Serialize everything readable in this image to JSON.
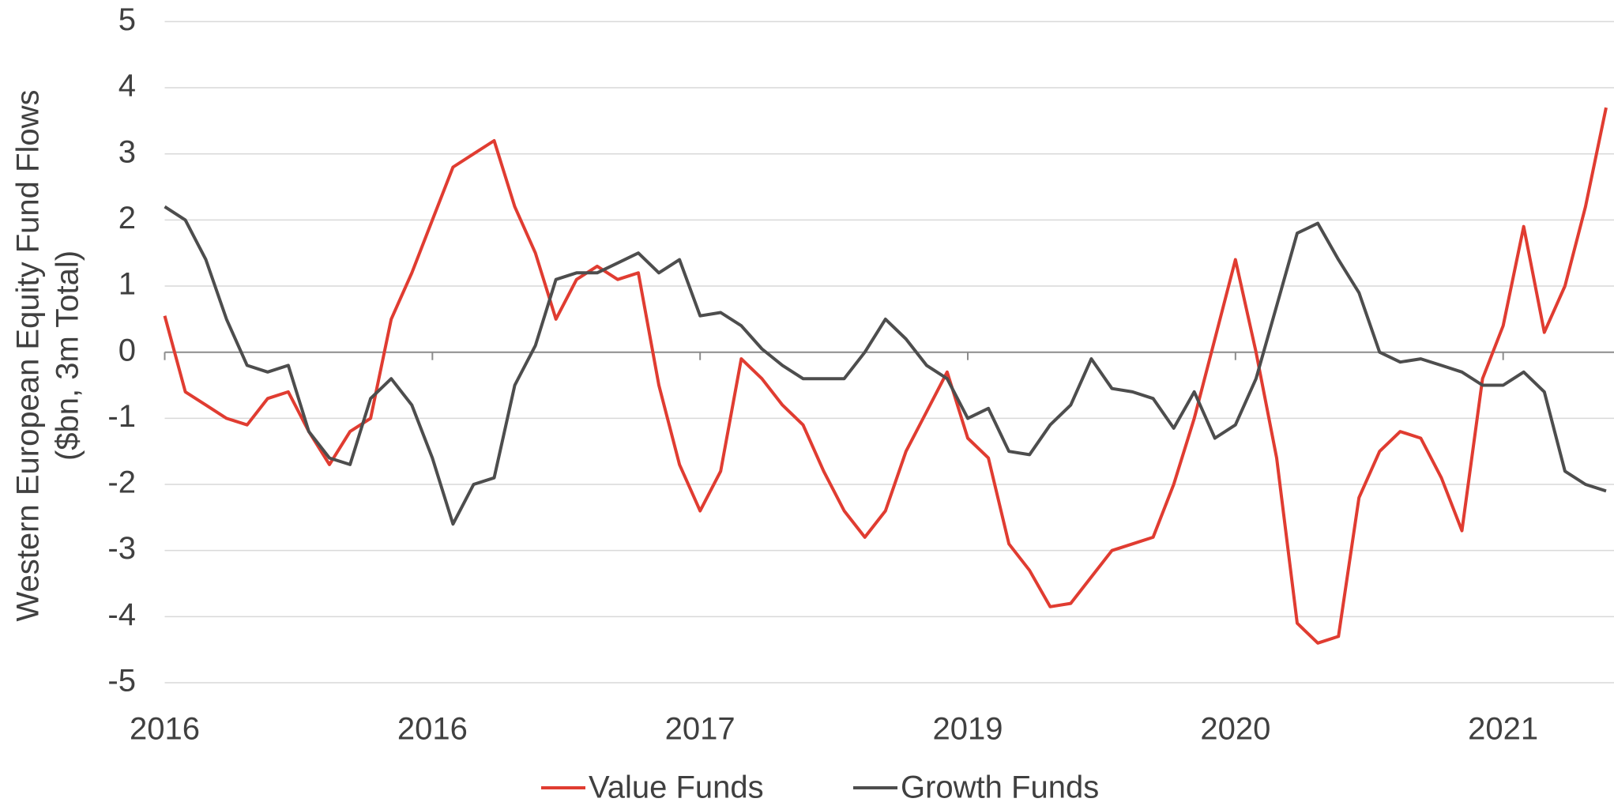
{
  "chart_data": {
    "type": "line",
    "y_label": [
      "Western European Equity Fund Flows",
      "($bn, 3m Total)"
    ],
    "categories": [
      "2016",
      null,
      null,
      null,
      null,
      null,
      null,
      null,
      null,
      null,
      null,
      null,
      null,
      "2016",
      null,
      null,
      null,
      null,
      null,
      null,
      null,
      null,
      null,
      null,
      null,
      null,
      "2017",
      null,
      null,
      null,
      null,
      null,
      null,
      null,
      null,
      null,
      null,
      null,
      null,
      "2019",
      null,
      null,
      null,
      null,
      null,
      null,
      null,
      null,
      null,
      null,
      null,
      null,
      "2020",
      null,
      null,
      null,
      null,
      null,
      null,
      null,
      null,
      null,
      null,
      null,
      null,
      "2021",
      null,
      null,
      null,
      null,
      null
    ],
    "series": [
      {
        "name": "Value Funds",
        "color": "#e03c31",
        "values": [
          0.55,
          -0.6,
          -0.8,
          -1.0,
          -1.1,
          -0.7,
          -0.6,
          -1.2,
          -1.7,
          -1.2,
          -1.0,
          0.5,
          1.2,
          2.0,
          2.8,
          3.0,
          3.2,
          2.2,
          1.5,
          0.5,
          1.1,
          1.3,
          1.1,
          1.2,
          -0.5,
          -1.7,
          -2.4,
          -1.8,
          -0.1,
          -0.4,
          -0.8,
          -1.1,
          -1.8,
          -2.4,
          -2.8,
          -2.4,
          -1.5,
          -0.9,
          -0.3,
          -1.3,
          -1.6,
          -2.9,
          -3.3,
          -3.85,
          -3.8,
          -3.4,
          -3.0,
          -2.9,
          -2.8,
          -2.0,
          -1.0,
          0.2,
          1.4,
          0.0,
          -1.6,
          -4.1,
          -4.4,
          -4.3,
          -2.2,
          -1.5,
          -1.2,
          -1.3,
          -1.9,
          -2.7,
          -0.4,
          0.4,
          1.9,
          0.3,
          1.0,
          2.2,
          3.7
        ]
      },
      {
        "name": "Growth Funds",
        "color": "#4d4d4d",
        "values": [
          2.2,
          2.0,
          1.4,
          0.5,
          -0.2,
          -0.3,
          -0.2,
          -1.2,
          -1.6,
          -1.7,
          -0.7,
          -0.4,
          -0.8,
          -1.6,
          -2.6,
          -2.0,
          -1.9,
          -0.5,
          0.1,
          1.1,
          1.2,
          1.2,
          1.35,
          1.5,
          1.2,
          1.4,
          0.55,
          0.6,
          0.4,
          0.05,
          -0.2,
          -0.4,
          -0.4,
          -0.4,
          0.0,
          0.5,
          0.2,
          -0.2,
          -0.4,
          -1.0,
          -0.85,
          -1.5,
          -1.55,
          -1.1,
          -0.8,
          -0.1,
          -0.55,
          -0.6,
          -0.7,
          -1.15,
          -0.6,
          -1.3,
          -1.1,
          -0.4,
          0.7,
          1.8,
          1.95,
          1.4,
          0.9,
          0.0,
          -0.15,
          -0.1,
          -0.2,
          -0.3,
          -0.5,
          -0.5,
          -0.3,
          -0.6,
          -1.8,
          -2.0,
          -2.1
        ]
      }
    ],
    "ylim": [
      -5,
      5
    ],
    "yticks": [
      -5,
      -4,
      -3,
      -2,
      -1,
      0,
      1,
      2,
      3,
      4,
      5
    ],
    "grid": true,
    "legend": "bottom"
  }
}
